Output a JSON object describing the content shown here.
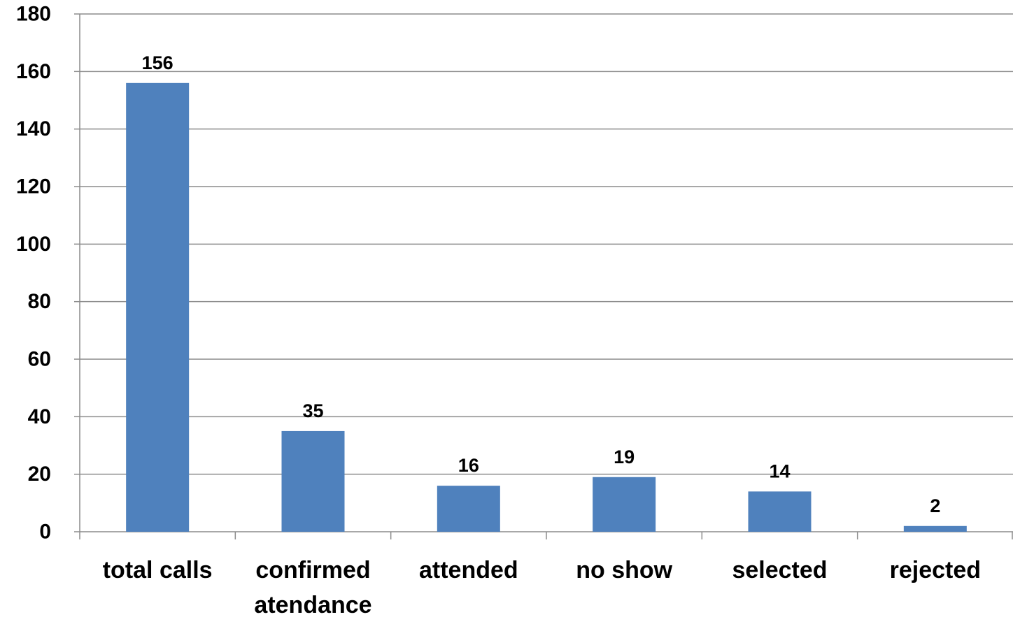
{
  "chart_data": {
    "type": "bar",
    "categories": [
      [
        "total calls"
      ],
      [
        "confirmed",
        "atendance"
      ],
      [
        "attended"
      ],
      [
        "no show"
      ],
      [
        "selected"
      ],
      [
        "rejected"
      ]
    ],
    "values": [
      156,
      35,
      16,
      19,
      14,
      2
    ],
    "data_labels": [
      "156",
      "35",
      "16",
      "19",
      "14",
      "2"
    ],
    "ylim": [
      0,
      180
    ],
    "yticks": [
      0,
      20,
      40,
      60,
      80,
      100,
      120,
      140,
      160,
      180
    ],
    "ytick_labels": [
      "0",
      "20",
      "40",
      "60",
      "80",
      "100",
      "120",
      "140",
      "160",
      "180"
    ],
    "grid": true,
    "legend": "none",
    "bar_color": "#4f81bd"
  }
}
